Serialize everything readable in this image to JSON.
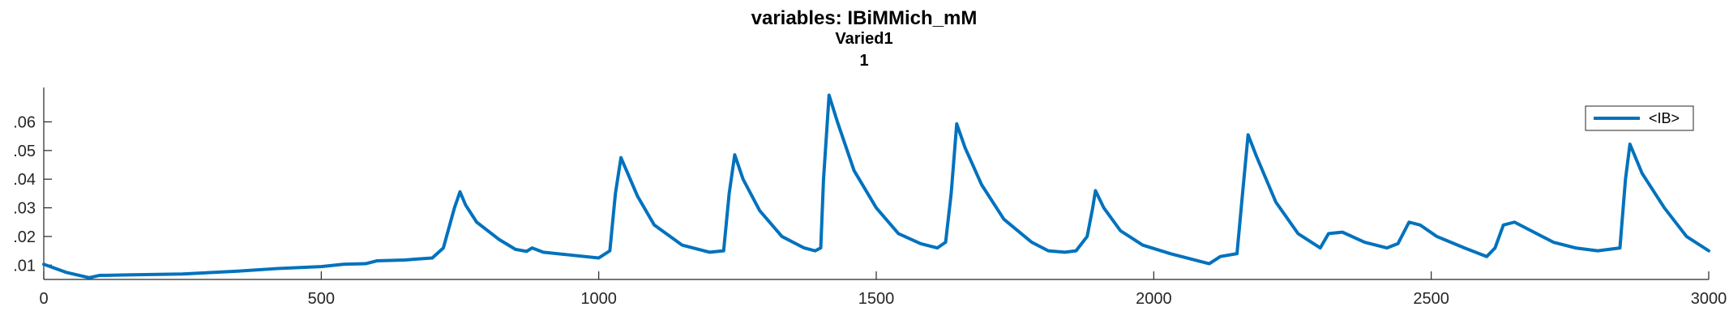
{
  "chart_data": {
    "type": "line",
    "title": "variables: IBiMMich_mM",
    "subtitle_lines": [
      "Varied1",
      "1"
    ],
    "xlabel": "",
    "ylabel": "",
    "xlim": [
      0,
      3000
    ],
    "ylim": [
      0.005,
      0.072
    ],
    "x_ticks": [
      0,
      500,
      1000,
      1500,
      2000,
      2500,
      3000
    ],
    "x_tick_labels": [
      "0",
      "500",
      "1000",
      "1500",
      "2000",
      "2500",
      "3000"
    ],
    "y_ticks": [
      0.01,
      0.02,
      0.03,
      0.04,
      0.05,
      0.06
    ],
    "y_tick_labels": [
      ".01",
      ".02",
      ".03",
      ".04",
      ".05",
      ".06"
    ],
    "grid": false,
    "legend_position": "top-right",
    "series": [
      {
        "name": "<IB>",
        "color": "#0072BD",
        "points": [
          [
            0,
            0.0103
          ],
          [
            40,
            0.0075
          ],
          [
            80,
            0.0057
          ],
          [
            82,
            0.0056
          ],
          [
            100,
            0.0064
          ],
          [
            150,
            0.0066
          ],
          [
            250,
            0.0069
          ],
          [
            350,
            0.0079
          ],
          [
            420,
            0.0088
          ],
          [
            500,
            0.0095
          ],
          [
            540,
            0.0103
          ],
          [
            580,
            0.0105
          ],
          [
            600,
            0.0115
          ],
          [
            650,
            0.0118
          ],
          [
            700,
            0.0125
          ],
          [
            720,
            0.016
          ],
          [
            740,
            0.03
          ],
          [
            750,
            0.0356
          ],
          [
            760,
            0.031
          ],
          [
            780,
            0.025
          ],
          [
            820,
            0.019
          ],
          [
            850,
            0.0155
          ],
          [
            870,
            0.0148
          ],
          [
            880,
            0.016
          ],
          [
            900,
            0.0145
          ],
          [
            950,
            0.0135
          ],
          [
            1000,
            0.0125
          ],
          [
            1020,
            0.015
          ],
          [
            1030,
            0.035
          ],
          [
            1040,
            0.0475
          ],
          [
            1050,
            0.043
          ],
          [
            1070,
            0.034
          ],
          [
            1100,
            0.024
          ],
          [
            1150,
            0.017
          ],
          [
            1200,
            0.0145
          ],
          [
            1225,
            0.015
          ],
          [
            1235,
            0.035
          ],
          [
            1245,
            0.0485
          ],
          [
            1260,
            0.04
          ],
          [
            1290,
            0.029
          ],
          [
            1330,
            0.02
          ],
          [
            1370,
            0.016
          ],
          [
            1390,
            0.015
          ],
          [
            1400,
            0.016
          ],
          [
            1405,
            0.04
          ],
          [
            1415,
            0.0693
          ],
          [
            1430,
            0.06
          ],
          [
            1460,
            0.043
          ],
          [
            1500,
            0.03
          ],
          [
            1540,
            0.021
          ],
          [
            1580,
            0.0175
          ],
          [
            1610,
            0.016
          ],
          [
            1625,
            0.018
          ],
          [
            1635,
            0.035
          ],
          [
            1645,
            0.0593
          ],
          [
            1660,
            0.051
          ],
          [
            1690,
            0.038
          ],
          [
            1730,
            0.026
          ],
          [
            1780,
            0.018
          ],
          [
            1810,
            0.015
          ],
          [
            1840,
            0.0145
          ],
          [
            1860,
            0.015
          ],
          [
            1880,
            0.02
          ],
          [
            1890,
            0.03
          ],
          [
            1895,
            0.036
          ],
          [
            1910,
            0.03
          ],
          [
            1940,
            0.022
          ],
          [
            1980,
            0.017
          ],
          [
            2030,
            0.014
          ],
          [
            2080,
            0.0115
          ],
          [
            2100,
            0.0105
          ],
          [
            2120,
            0.013
          ],
          [
            2150,
            0.014
          ],
          [
            2160,
            0.035
          ],
          [
            2170,
            0.0555
          ],
          [
            2185,
            0.048
          ],
          [
            2220,
            0.032
          ],
          [
            2260,
            0.021
          ],
          [
            2300,
            0.016
          ],
          [
            2315,
            0.021
          ],
          [
            2340,
            0.0215
          ],
          [
            2380,
            0.018
          ],
          [
            2420,
            0.016
          ],
          [
            2440,
            0.0175
          ],
          [
            2460,
            0.025
          ],
          [
            2480,
            0.024
          ],
          [
            2510,
            0.02
          ],
          [
            2560,
            0.016
          ],
          [
            2600,
            0.013
          ],
          [
            2615,
            0.016
          ],
          [
            2630,
            0.024
          ],
          [
            2650,
            0.025
          ],
          [
            2680,
            0.022
          ],
          [
            2720,
            0.018
          ],
          [
            2760,
            0.016
          ],
          [
            2800,
            0.015
          ],
          [
            2840,
            0.016
          ],
          [
            2850,
            0.04
          ],
          [
            2858,
            0.0522
          ],
          [
            2880,
            0.042
          ],
          [
            2920,
            0.03
          ],
          [
            2960,
            0.02
          ],
          [
            3000,
            0.015
          ]
        ]
      }
    ]
  }
}
